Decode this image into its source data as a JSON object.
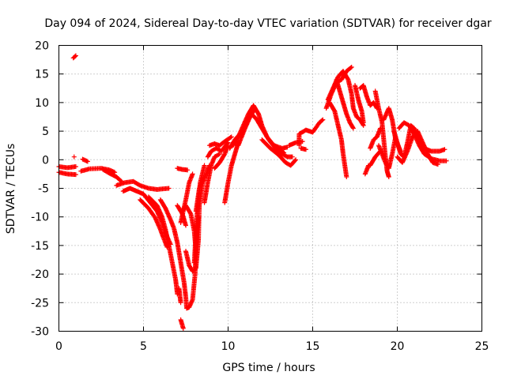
{
  "chart_data": {
    "type": "scatter",
    "title": "Day 094 of 2024, Sidereal Day-to-day VTEC variation (SDTVAR) for receiver dgar",
    "xlabel": "GPS time / hours",
    "ylabel": "SDTVAR / TECUs",
    "xlim": [
      0,
      25
    ],
    "ylim": [
      -30,
      20
    ],
    "xticks": [
      0,
      5,
      10,
      15,
      20,
      25
    ],
    "yticks": [
      20,
      15,
      10,
      5,
      0,
      -5,
      -10,
      -15,
      -20,
      -25,
      -30
    ],
    "grid": true,
    "marker": "plus",
    "series": [
      {
        "name": "SDTVAR",
        "color": "#ff0000",
        "segments": [
          [
            [
              0.85,
              17.8
            ],
            [
              1.0,
              18.2
            ]
          ],
          [
            [
              0.0,
              -1.2
            ],
            [
              0.5,
              -1.4
            ],
            [
              1.0,
              -1.2
            ]
          ],
          [
            [
              0.0,
              -2.2
            ],
            [
              0.5,
              -2.5
            ],
            [
              1.0,
              -2.6
            ]
          ],
          [
            [
              0.9,
              0.5
            ]
          ],
          [
            [
              1.4,
              0.1
            ],
            [
              1.7,
              -0.3
            ]
          ],
          [
            [
              1.3,
              -2.0
            ],
            [
              1.8,
              -1.6
            ],
            [
              2.5,
              -1.5
            ],
            [
              3.0,
              -1.8
            ],
            [
              3.3,
              -2.2
            ]
          ],
          [
            [
              2.6,
              -1.7
            ],
            [
              3.0,
              -2.4
            ],
            [
              3.4,
              -3.0
            ],
            [
              3.7,
              -3.8
            ]
          ],
          [
            [
              3.4,
              -4.5
            ],
            [
              3.9,
              -4.0
            ],
            [
              4.4,
              -3.8
            ],
            [
              4.8,
              -4.5
            ],
            [
              5.3,
              -5.0
            ],
            [
              5.8,
              -5.2
            ],
            [
              6.5,
              -5.0
            ]
          ],
          [
            [
              3.8,
              -5.5
            ],
            [
              4.2,
              -5.0
            ],
            [
              4.6,
              -5.5
            ],
            [
              5.0,
              -6.0
            ],
            [
              5.4,
              -7.5
            ],
            [
              5.8,
              -9.0
            ],
            [
              6.1,
              -11.0
            ],
            [
              6.4,
              -13.5
            ],
            [
              6.6,
              -14.8
            ]
          ],
          [
            [
              4.8,
              -7.0
            ],
            [
              5.3,
              -8.5
            ],
            [
              5.7,
              -10.2
            ],
            [
              6.0,
              -12.2
            ],
            [
              6.2,
              -13.8
            ],
            [
              6.4,
              -15.3
            ]
          ],
          [
            [
              5.3,
              -6.5
            ],
            [
              5.8,
              -8.0
            ],
            [
              6.1,
              -10.0
            ],
            [
              6.3,
              -12.2
            ],
            [
              6.5,
              -15.0
            ],
            [
              6.7,
              -18.0
            ],
            [
              6.9,
              -21.0
            ],
            [
              7.0,
              -23.5
            ]
          ],
          [
            [
              6.0,
              -7.0
            ],
            [
              6.3,
              -8.5
            ],
            [
              6.6,
              -10.5
            ],
            [
              6.8,
              -12.0
            ],
            [
              7.0,
              -14.5
            ],
            [
              7.2,
              -18.0
            ],
            [
              7.4,
              -21.5
            ],
            [
              7.5,
              -24.0
            ],
            [
              7.55,
              -26.0
            ],
            [
              7.7,
              -25.8
            ],
            [
              7.9,
              -24.5
            ],
            [
              8.05,
              -20.0
            ],
            [
              8.1,
              -15.0
            ],
            [
              8.25,
              -10.0
            ]
          ],
          [
            [
              7.1,
              -22.5
            ],
            [
              7.2,
              -25.0
            ]
          ],
          [
            [
              7.2,
              -28.0
            ],
            [
              7.35,
              -29.5
            ]
          ],
          [
            [
              7.0,
              -1.5
            ],
            [
              7.3,
              -1.7
            ],
            [
              7.6,
              -1.8
            ]
          ],
          [
            [
              7.0,
              -8.0
            ],
            [
              7.3,
              -9.5
            ],
            [
              7.5,
              -11.5
            ]
          ],
          [
            [
              7.2,
              -11.0
            ],
            [
              7.5,
              -7.0
            ],
            [
              7.7,
              -4.0
            ],
            [
              7.9,
              -2.5
            ]
          ],
          [
            [
              7.3,
              -9.0
            ],
            [
              7.5,
              -8.0
            ],
            [
              7.8,
              -9.5
            ],
            [
              8.0,
              -12.5
            ],
            [
              8.1,
              -16.0
            ]
          ],
          [
            [
              7.5,
              -16.0
            ],
            [
              7.7,
              -18.5
            ],
            [
              7.9,
              -19.5
            ],
            [
              8.1,
              -19.0
            ],
            [
              8.25,
              -14.0
            ],
            [
              8.3,
              -8.0
            ],
            [
              8.5,
              -4.0
            ],
            [
              8.7,
              -2.5
            ],
            [
              8.9,
              -1.0
            ]
          ],
          [
            [
              8.0,
              -18.0
            ],
            [
              8.15,
              -10.0
            ],
            [
              8.35,
              -4.0
            ],
            [
              8.6,
              -1.0
            ]
          ],
          [
            [
              8.1,
              -9.0
            ],
            [
              8.3,
              -5.0
            ],
            [
              8.5,
              -3.5
            ]
          ],
          [
            [
              8.6,
              -7.5
            ],
            [
              8.8,
              -4.0
            ],
            [
              9.0,
              -1.0
            ],
            [
              9.2,
              0.5
            ],
            [
              9.5,
              1.0
            ]
          ],
          [
            [
              8.8,
              0.5
            ],
            [
              9.0,
              1.5
            ],
            [
              9.3,
              2.0
            ],
            [
              9.6,
              1.5
            ],
            [
              10.0,
              3.0
            ]
          ],
          [
            [
              8.9,
              2.5
            ],
            [
              9.2,
              2.8
            ],
            [
              9.5,
              2.5
            ],
            [
              9.8,
              3.2
            ],
            [
              10.2,
              4.0
            ]
          ],
          [
            [
              9.2,
              -1.5
            ],
            [
              9.5,
              -0.5
            ],
            [
              9.8,
              1.0
            ],
            [
              10.0,
              2.5
            ]
          ],
          [
            [
              9.8,
              -7.5
            ],
            [
              10.0,
              -4.0
            ],
            [
              10.2,
              -1.0
            ],
            [
              10.4,
              1.0
            ],
            [
              10.6,
              3.0
            ]
          ],
          [
            [
              10.1,
              2.0
            ],
            [
              10.4,
              3.5
            ],
            [
              10.7,
              4.5
            ]
          ],
          [
            [
              10.3,
              2.5
            ],
            [
              10.6,
              4.0
            ],
            [
              10.9,
              6.0
            ],
            [
              11.2,
              8.0
            ],
            [
              11.5,
              9.5
            ],
            [
              11.8,
              8.0
            ],
            [
              12.0,
              6.0
            ],
            [
              12.3,
              4.0
            ],
            [
              12.7,
              2.5
            ],
            [
              13.2,
              2.0
            ],
            [
              13.5,
              2.2
            ]
          ],
          [
            [
              10.8,
              4.5
            ],
            [
              11.1,
              6.5
            ],
            [
              11.4,
              8.0
            ],
            [
              11.7,
              7.0
            ],
            [
              12.0,
              5.5
            ],
            [
              12.4,
              3.5
            ],
            [
              12.8,
              2.0
            ],
            [
              13.2,
              1.0
            ],
            [
              13.5,
              0.5
            ],
            [
              13.8,
              0.5
            ]
          ],
          [
            [
              10.6,
              2.5
            ],
            [
              11.0,
              5.5
            ],
            [
              11.3,
              7.5
            ],
            [
              11.6,
              9.0
            ]
          ],
          [
            [
              12.0,
              3.5
            ],
            [
              12.5,
              2.0
            ],
            [
              13.0,
              0.8
            ],
            [
              13.4,
              -0.5
            ],
            [
              13.7,
              -1.0
            ],
            [
              14.0,
              0.0
            ]
          ],
          [
            [
              12.6,
              2.8
            ],
            [
              13.0,
              2.0
            ],
            [
              13.3,
              1.2
            ]
          ],
          [
            [
              13.6,
              2.5
            ],
            [
              14.0,
              3.0
            ],
            [
              14.4,
              3.2
            ]
          ],
          [
            [
              14.2,
              2.5
            ],
            [
              14.2,
              4.5
            ],
            [
              14.6,
              5.2
            ],
            [
              15.0,
              4.8
            ],
            [
              15.4,
              6.5
            ],
            [
              15.6,
              7.0
            ]
          ],
          [
            [
              14.3,
              2.0
            ],
            [
              14.6,
              1.8
            ]
          ],
          [
            [
              15.8,
              9.0
            ],
            [
              16.1,
              11.5
            ],
            [
              16.4,
              13.5
            ],
            [
              16.7,
              14.0
            ],
            [
              17.0,
              15.5
            ],
            [
              17.3,
              16.2
            ]
          ],
          [
            [
              15.9,
              10.5
            ],
            [
              16.2,
              12.5
            ],
            [
              16.5,
              14.5
            ],
            [
              16.8,
              15.5
            ],
            [
              17.1,
              14.0
            ],
            [
              17.3,
              11.5
            ],
            [
              17.4,
              9.0
            ],
            [
              17.6,
              7.5
            ],
            [
              17.8,
              7.0
            ],
            [
              18.0,
              6.0
            ]
          ],
          [
            [
              16.0,
              10.0
            ],
            [
              16.3,
              8.5
            ],
            [
              16.5,
              6.0
            ],
            [
              16.7,
              3.5
            ],
            [
              16.8,
              1.0
            ],
            [
              16.9,
              -1.0
            ],
            [
              17.0,
              -3.0
            ]
          ],
          [
            [
              16.4,
              14.0
            ],
            [
              16.6,
              12.0
            ],
            [
              16.8,
              10.0
            ],
            [
              17.0,
              8.0
            ],
            [
              17.2,
              6.5
            ],
            [
              17.4,
              5.5
            ]
          ],
          [
            [
              17.5,
              13.0
            ],
            [
              17.7,
              10.5
            ],
            [
              17.9,
              8.5
            ],
            [
              18.0,
              6.5
            ]
          ],
          [
            [
              17.8,
              12.5
            ],
            [
              18.0,
              13.0
            ],
            [
              18.2,
              11.0
            ],
            [
              18.4,
              9.5
            ],
            [
              18.6,
              10.0
            ],
            [
              18.8,
              9.0
            ]
          ],
          [
            [
              18.1,
              -2.5
            ],
            [
              18.3,
              -1.0
            ]
          ],
          [
            [
              18.4,
              2.0
            ],
            [
              18.6,
              3.5
            ],
            [
              18.8,
              4.0
            ],
            [
              19.0,
              5.5
            ]
          ],
          [
            [
              18.7,
              12.0
            ],
            [
              18.9,
              9.0
            ],
            [
              19.1,
              6.5
            ],
            [
              19.2,
              3.5
            ],
            [
              19.3,
              0.5
            ],
            [
              19.4,
              -2.0
            ],
            [
              19.5,
              -3.0
            ]
          ],
          [
            [
              18.9,
              2.5
            ],
            [
              19.1,
              1.0
            ],
            [
              19.3,
              -0.5
            ],
            [
              19.5,
              -1.5
            ],
            [
              19.7,
              1.0
            ],
            [
              19.9,
              4.0
            ]
          ],
          [
            [
              19.2,
              7.0
            ],
            [
              19.5,
              9.0
            ],
            [
              19.7,
              7.0
            ],
            [
              19.9,
              3.5
            ],
            [
              20.2,
              1.5
            ]
          ],
          [
            [
              19.8,
              5.0
            ],
            [
              20.0,
              3.0
            ],
            [
              20.2,
              1.0
            ],
            [
              20.4,
              0.5
            ],
            [
              20.6,
              3.0
            ],
            [
              20.8,
              6.0
            ],
            [
              21.0,
              5.5
            ],
            [
              21.3,
              3.5
            ],
            [
              21.6,
              2.0
            ],
            [
              22.0,
              1.5
            ],
            [
              22.5,
              1.5
            ],
            [
              22.8,
              1.8
            ]
          ],
          [
            [
              20.1,
              5.5
            ],
            [
              20.4,
              6.5
            ],
            [
              20.7,
              6.0
            ],
            [
              21.0,
              4.5
            ],
            [
              21.3,
              2.5
            ],
            [
              21.6,
              1.0
            ],
            [
              22.0,
              0.2
            ],
            [
              22.5,
              -0.2
            ],
            [
              22.9,
              -0.2
            ]
          ],
          [
            [
              20.0,
              0.5
            ],
            [
              20.3,
              -0.5
            ],
            [
              20.6,
              1.5
            ],
            [
              20.9,
              4.0
            ],
            [
              21.2,
              5.0
            ],
            [
              21.5,
              3.0
            ],
            [
              21.8,
              1.0
            ],
            [
              22.1,
              -0.5
            ],
            [
              22.4,
              -0.8
            ]
          ],
          [
            [
              18.4,
              -1.0
            ],
            [
              18.7,
              0.5
            ],
            [
              19.0,
              1.5
            ]
          ]
        ]
      }
    ]
  }
}
